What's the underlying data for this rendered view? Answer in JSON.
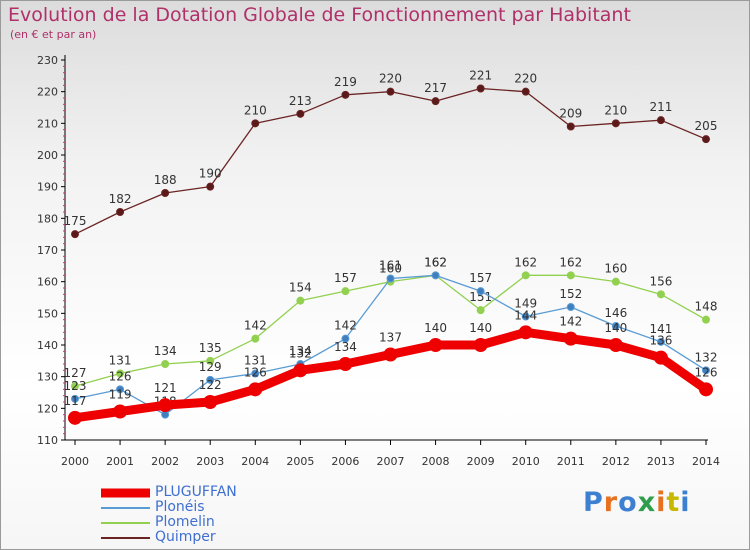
{
  "title": "Evolution de la Dotation Globale de Fonctionnement par Habitant",
  "subtitle": "(en € et par an)",
  "logo": "Proxiti",
  "colors": {
    "pluguffan": "#ee0000",
    "ploneis": "#5a9bd3",
    "plomelin": "#92d050",
    "quimper": "#6b2323",
    "title": "#b0306a",
    "legend": "#3f6fd0"
  },
  "chart_data": {
    "type": "line",
    "x": [
      "2000",
      "2001",
      "2002",
      "2003",
      "2004",
      "2005",
      "2006",
      "2007",
      "2008",
      "2009",
      "2010",
      "2011",
      "2012",
      "2013",
      "2014"
    ],
    "ylim": [
      110,
      230
    ],
    "yticks": [
      110,
      120,
      130,
      140,
      150,
      160,
      170,
      180,
      190,
      200,
      210,
      220,
      230
    ],
    "grid": "none",
    "legend_position": "bottom-left",
    "series": [
      {
        "name": "Quimper",
        "values": [
          175,
          182,
          188,
          190,
          210,
          213,
          219,
          220,
          217,
          221,
          220,
          209,
          210,
          211,
          205
        ]
      },
      {
        "name": "Plomelin",
        "values": [
          127,
          131,
          134,
          135,
          142,
          154,
          157,
          160,
          162,
          151,
          162,
          162,
          160,
          156,
          148
        ]
      },
      {
        "name": "Plonéis",
        "values": [
          123,
          126,
          118,
          129,
          131,
          134,
          142,
          161,
          162,
          157,
          149,
          152,
          146,
          141,
          132
        ]
      },
      {
        "name": "PLUGUFFAN",
        "values": [
          117,
          119,
          121,
          122,
          126,
          132,
          134,
          137,
          140,
          140,
          144,
          142,
          140,
          136,
          126
        ]
      }
    ]
  }
}
